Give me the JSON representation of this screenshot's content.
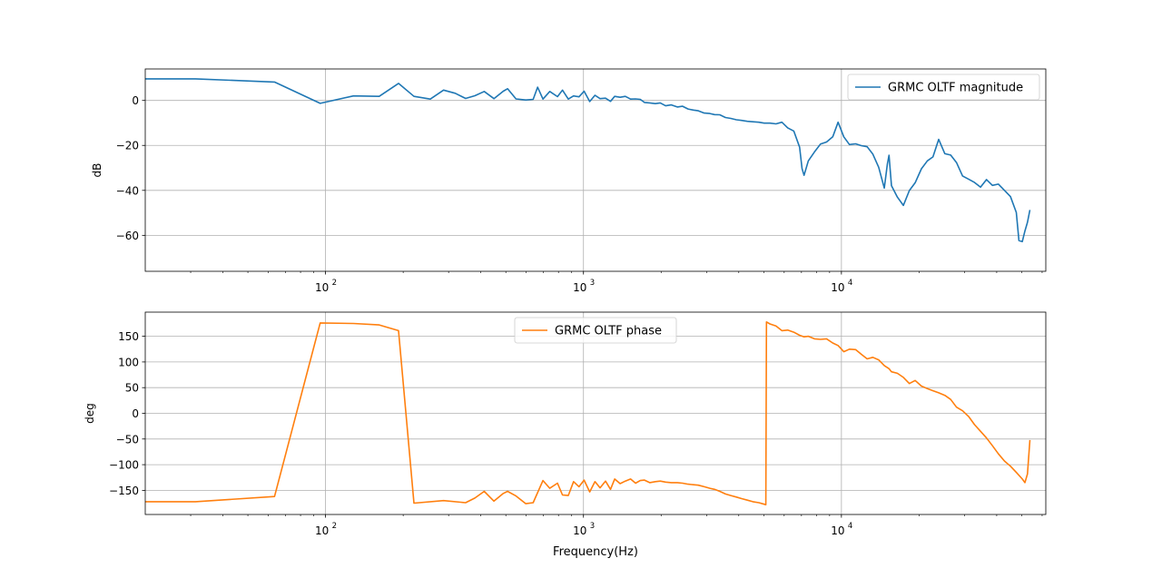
{
  "chart_data": [
    {
      "type": "line",
      "xscale": "log",
      "xlim": [
        20,
        62000
      ],
      "ylim": [
        -76,
        14
      ],
      "xlabel": "",
      "ylabel": "dB",
      "grid": true,
      "legend_position": "upper right",
      "x_ticks": [
        100,
        1000,
        10000
      ],
      "x_tick_labels": [
        {
          "base": "10",
          "exp": "2"
        },
        {
          "base": "10",
          "exp": "3"
        },
        {
          "base": "10",
          "exp": "4"
        }
      ],
      "y_ticks": [
        0,
        -20,
        -40,
        -60
      ],
      "y_tick_labels": [
        "0",
        "−20",
        "−40",
        "−60"
      ],
      "series": [
        {
          "name": "GRMC OLTF magnitude",
          "color": "#1f77b4",
          "x": [
            20,
            31.3,
            63.4,
            95.3,
            128.4,
            161.5,
            191.9,
            220.2,
            254.7,
            286.8,
            318.5,
            349.3,
            379.4,
            412.4,
            449.5,
            488.7,
            507.7,
            547.5,
            597.8,
            637.9,
            664.2,
            696.5,
            740.3,
            792.9,
            829.4,
            873.2,
            915.2,
            960.8,
            1005.6,
            1056.9,
            1108.4,
            1160.0,
            1217.6,
            1272.7,
            1320.7,
            1386.5,
            1452.1,
            1523.1,
            1591.9,
            1660.6,
            1723.5,
            1806.9,
            1899.2,
            1984.1,
            2082.4,
            2190.0,
            2310.7,
            2423.1,
            2542.5,
            2667.1,
            2787.8,
            2937.8,
            3087.8,
            3222.3,
            3376.9,
            3549.9,
            3726.2,
            3917.6,
            4102.8,
            4318.4,
            4537.5,
            4783.5,
            5020.4,
            5282.1,
            5575.5,
            5878.7,
            6193.6,
            6536.0,
            6885.5,
            7037.7,
            7165.7,
            7442.2,
            7865.8,
            8296.4,
            8762.0,
            9251.2,
            9706.6,
            10214.6,
            10742.3,
            11355.4,
            11937.2,
            12578.1,
            13240.1,
            13947.0,
            14659.4,
            15072.0,
            15297.9,
            15628.8,
            16477.9,
            17386.3,
            18338.2,
            19319.1,
            20426.1,
            21532.6,
            22651.2,
            23836.3,
            25171.2,
            26516.5,
            27922.0,
            29485.5,
            31109.5,
            32818.7,
            34614.6,
            36508.8,
            38504.0,
            40608.5,
            42874.4,
            45236.4,
            47653.9,
            48778.6,
            50263.2,
            51446.8,
            52617.2,
            53804.8
          ],
          "y": [
            9.6,
            9.6,
            8.2,
            -1.3,
            2.0,
            1.8,
            7.6,
            1.8,
            0.6,
            4.6,
            3.2,
            0.9,
            2.1,
            4.0,
            0.8,
            4.1,
            5.2,
            0.7,
            0.2,
            0.5,
            5.9,
            0.6,
            4.0,
            1.7,
            4.6,
            0.6,
            2.0,
            1.6,
            4.1,
            -0.5,
            2.3,
            0.8,
            1.0,
            -0.4,
            1.8,
            1.4,
            1.8,
            0.6,
            0.7,
            0.5,
            -0.9,
            -1.1,
            -1.4,
            -1.1,
            -2.4,
            -2.0,
            -2.9,
            -2.6,
            -3.8,
            -4.3,
            -4.6,
            -5.6,
            -5.8,
            -6.3,
            -6.4,
            -7.6,
            -8.0,
            -8.6,
            -8.9,
            -9.3,
            -9.5,
            -9.7,
            -10.1,
            -10.1,
            -10.4,
            -9.7,
            -12.2,
            -13.6,
            -20.8,
            -30.3,
            -33.3,
            -26.9,
            -22.9,
            -19.4,
            -18.5,
            -16.2,
            -9.7,
            -16.2,
            -19.6,
            -19.3,
            -20.1,
            -20.6,
            -23.9,
            -29.7,
            -39.0,
            -28.2,
            -24.4,
            -37.9,
            -43.0,
            -46.7,
            -40.1,
            -36.6,
            -30.4,
            -26.9,
            -25.1,
            -17.3,
            -23.7,
            -24.3,
            -27.6,
            -33.6,
            -35.0,
            -36.5,
            -38.6,
            -35.2,
            -37.8,
            -37.2,
            -40.0,
            -42.8,
            -49.8,
            -62.3,
            -62.8,
            -58.1,
            -54.2,
            -48.7
          ]
        }
      ]
    },
    {
      "type": "line",
      "xscale": "log",
      "xlim": [
        20,
        62000
      ],
      "ylim": [
        -197,
        197
      ],
      "xlabel": "Frequency(Hz)",
      "ylabel": "deg",
      "grid": true,
      "legend_position": "upper center",
      "x_ticks": [
        100,
        1000,
        10000
      ],
      "x_tick_labels": [
        {
          "base": "10",
          "exp": "2"
        },
        {
          "base": "10",
          "exp": "3"
        },
        {
          "base": "10",
          "exp": "4"
        }
      ],
      "y_ticks": [
        150,
        100,
        50,
        0,
        -50,
        -100,
        -150
      ],
      "y_tick_labels": [
        "150",
        "100",
        "50",
        "0",
        "−50",
        "−100",
        "−150"
      ],
      "series": [
        {
          "name": "GRMC OLTF phase",
          "color": "#ff7f0e",
          "x": [
            20,
            31.3,
            63.4,
            95.3,
            128.4,
            161.5,
            191.9,
            220.2,
            286.8,
            349.3,
            379.4,
            412.4,
            449.5,
            488.7,
            507.7,
            547.5,
            597.8,
            637.9,
            696.5,
            740.3,
            792.9,
            829.4,
            873.2,
            915.2,
            960.8,
            1005.6,
            1056.9,
            1108.4,
            1160.0,
            1217.6,
            1272.7,
            1320.7,
            1386.5,
            1452.1,
            1523.1,
            1591.9,
            1660.6,
            1723.5,
            1806.9,
            1899.2,
            1984.1,
            2082.4,
            2190.0,
            2310.7,
            2423.1,
            2542.5,
            2667.1,
            2787.8,
            2937.8,
            3087.8,
            3222.3,
            3376.9,
            3549.9,
            3726.2,
            3917.6,
            4102.8,
            4318.4,
            4537.5,
            4783.5,
            5020.4,
            5091.2,
            5120.3,
            5282.1,
            5575.5,
            5878.7,
            6193.6,
            6536.0,
            6885.5,
            7165.7,
            7442.2,
            7865.8,
            8296.4,
            8762.0,
            9251.2,
            9706.6,
            10214.6,
            10742.3,
            11355.4,
            11937.2,
            12578.1,
            13240.1,
            13947.0,
            14659.4,
            15297.9,
            15628.8,
            16477.9,
            17386.3,
            18338.2,
            19319.1,
            20426.1,
            21532.6,
            22651.2,
            23836.3,
            25171.2,
            26516.5,
            27922.0,
            29485.5,
            31109.5,
            32818.7,
            34614.6,
            36508.8,
            38504.0,
            40608.5,
            42874.4,
            45236.4,
            47653.9,
            50263.2,
            51446.8,
            52617.2,
            53804.8
          ],
          "y": [
            -172,
            -172,
            -162,
            176,
            175,
            172,
            161,
            -175,
            -170,
            -174,
            -165,
            -152,
            -171,
            -156,
            -152,
            -161,
            -176,
            -174,
            -131,
            -146,
            -136,
            -159,
            -160,
            -133,
            -143,
            -130,
            -153,
            -133,
            -145,
            -132,
            -148,
            -128,
            -137,
            -132,
            -128,
            -136,
            -131,
            -130,
            -135,
            -133,
            -132,
            -134,
            -135,
            -135,
            -136,
            -138,
            -139,
            -140,
            -143,
            -146,
            -148,
            -152,
            -157,
            -160,
            -163,
            -166,
            -169,
            -172,
            -174,
            -177,
            -178,
            178,
            174,
            170,
            161,
            162,
            158,
            152,
            149,
            150,
            145,
            144,
            145,
            137,
            132,
            120,
            125,
            124,
            115,
            106,
            109,
            104,
            93,
            87,
            81,
            78,
            70,
            58,
            64,
            53,
            48,
            44,
            40,
            35,
            27,
            12,
            5,
            -6,
            -22,
            -35,
            -48,
            -63,
            -79,
            -93,
            -103,
            -115,
            -128,
            -135,
            -118,
            -52
          ]
        }
      ]
    }
  ]
}
